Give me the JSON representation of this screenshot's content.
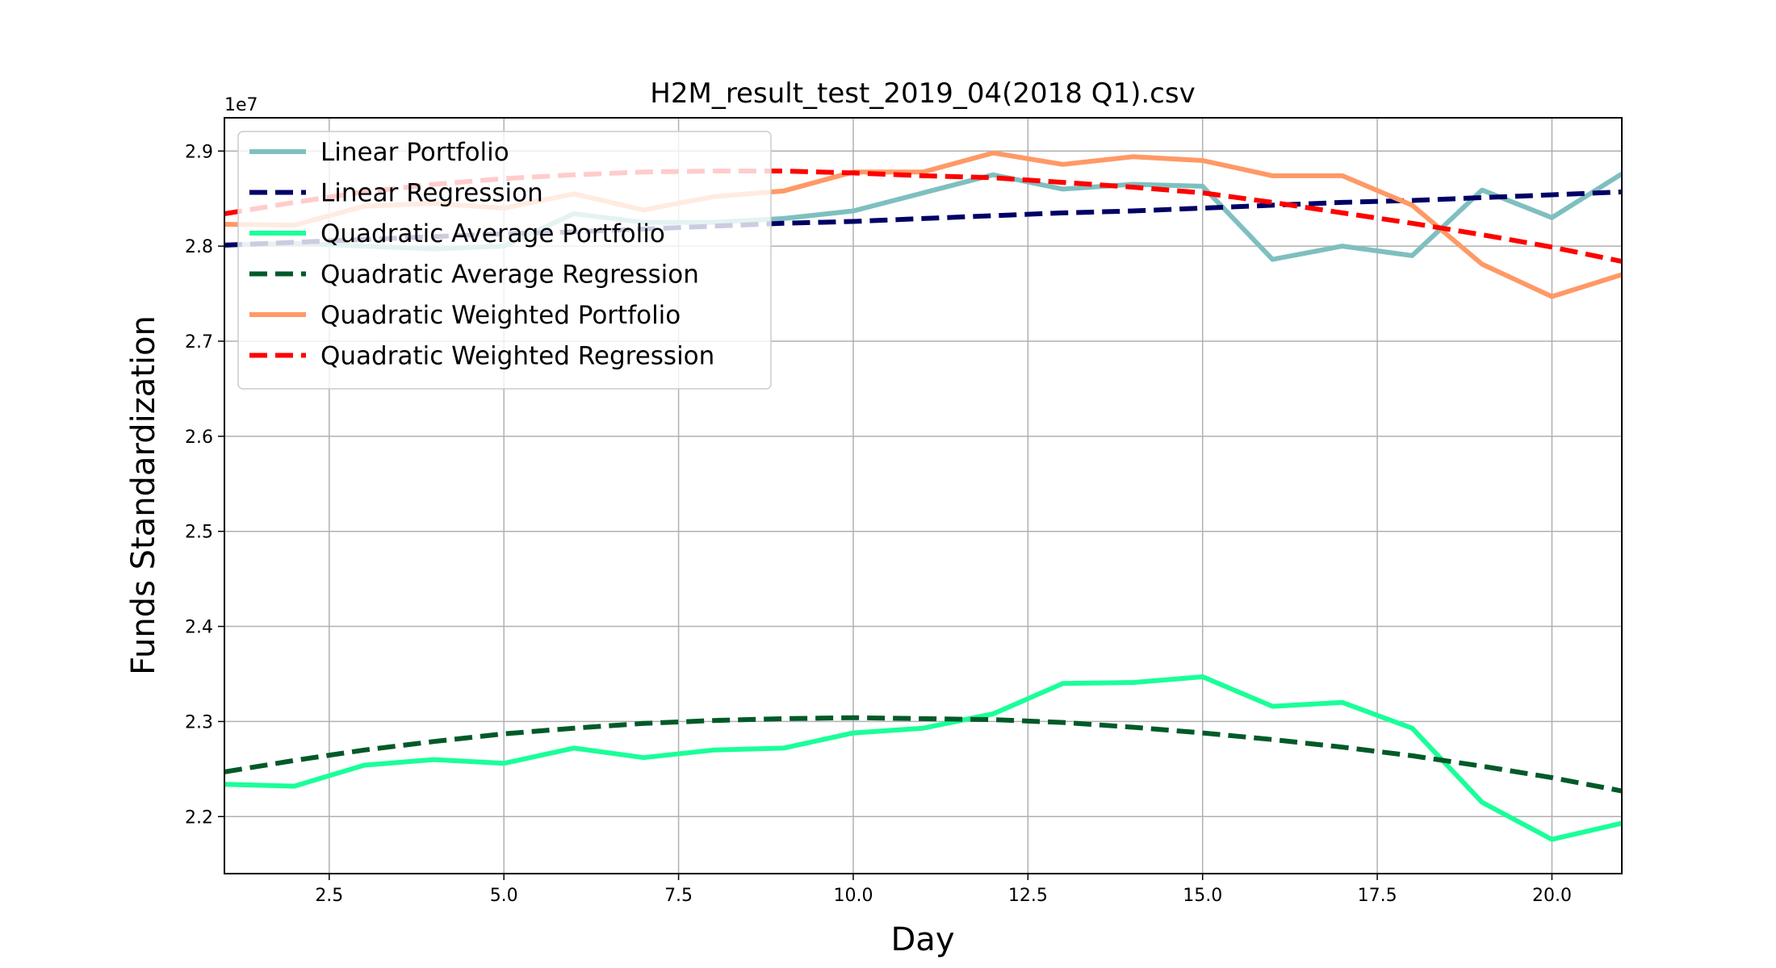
{
  "chart_data": {
    "type": "line",
    "title": "H2M_result_test_2019_04(2018 Q1).csv",
    "xlabel": "Day",
    "ylabel": "Funds Standardization",
    "y_offset_text": "1e7",
    "xlim": [
      1,
      21
    ],
    "ylim": [
      2.14,
      2.935
    ],
    "xticks": [
      2.5,
      5.0,
      7.5,
      10.0,
      12.5,
      15.0,
      17.5,
      20.0
    ],
    "xtick_labels": [
      "2.5",
      "5.0",
      "7.5",
      "10.0",
      "12.5",
      "15.0",
      "17.5",
      "20.0"
    ],
    "yticks": [
      2.2,
      2.3,
      2.4,
      2.5,
      2.6,
      2.7,
      2.8,
      2.9
    ],
    "ytick_labels": [
      "2.2",
      "2.3",
      "2.4",
      "2.5",
      "2.6",
      "2.7",
      "2.8",
      "2.9"
    ],
    "grid": true,
    "legend_position": "upper-left",
    "x": [
      1,
      2,
      3,
      4,
      5,
      6,
      7,
      8,
      9,
      10,
      11,
      12,
      13,
      14,
      15,
      16,
      17,
      18,
      19,
      20,
      21
    ],
    "series": [
      {
        "name": "Linear Portfolio",
        "color": "#7fbfbf",
        "style": "solid",
        "values": [
          2.801,
          2.803,
          2.8,
          2.797,
          2.8,
          2.834,
          2.825,
          2.825,
          2.829,
          2.837,
          2.856,
          2.875,
          2.86,
          2.865,
          2.863,
          2.786,
          2.8,
          2.79,
          2.859,
          2.83,
          2.876
        ]
      },
      {
        "name": "Linear Regression",
        "color": "#000066",
        "style": "dashed",
        "values": [
          2.801,
          2.804,
          2.807,
          2.81,
          2.813,
          2.815,
          2.818,
          2.821,
          2.824,
          2.826,
          2.829,
          2.832,
          2.835,
          2.837,
          2.84,
          2.843,
          2.846,
          2.848,
          2.851,
          2.854,
          2.857
        ]
      },
      {
        "name": "Quadratic Average Portfolio",
        "color": "#1aff99",
        "style": "solid",
        "values": [
          2.234,
          2.232,
          2.254,
          2.26,
          2.256,
          2.272,
          2.262,
          2.27,
          2.272,
          2.288,
          2.293,
          2.308,
          2.34,
          2.341,
          2.347,
          2.316,
          2.32,
          2.293,
          2.215,
          2.176,
          2.193
        ]
      },
      {
        "name": "Quadratic Average Regression",
        "color": "#005a28",
        "style": "dashed",
        "values": [
          2.247,
          2.259,
          2.27,
          2.279,
          2.287,
          2.293,
          2.298,
          2.301,
          2.303,
          2.304,
          2.303,
          2.302,
          2.299,
          2.294,
          2.288,
          2.281,
          2.273,
          2.264,
          2.253,
          2.241,
          2.227
        ]
      },
      {
        "name": "Quadratic Weighted Portfolio",
        "color": "#ff9966",
        "style": "solid",
        "values": [
          2.823,
          2.822,
          2.842,
          2.845,
          2.84,
          2.855,
          2.838,
          2.852,
          2.858,
          2.878,
          2.878,
          2.898,
          2.886,
          2.894,
          2.89,
          2.874,
          2.874,
          2.843,
          2.781,
          2.747,
          2.77
        ]
      },
      {
        "name": "Quadratic Weighted Regression",
        "color": "#ff0000",
        "style": "dashed",
        "values": [
          2.834,
          2.846,
          2.857,
          2.865,
          2.871,
          2.875,
          2.878,
          2.879,
          2.879,
          2.877,
          2.874,
          2.872,
          2.867,
          2.862,
          2.856,
          2.846,
          2.835,
          2.824,
          2.812,
          2.799,
          2.784
        ]
      }
    ]
  }
}
